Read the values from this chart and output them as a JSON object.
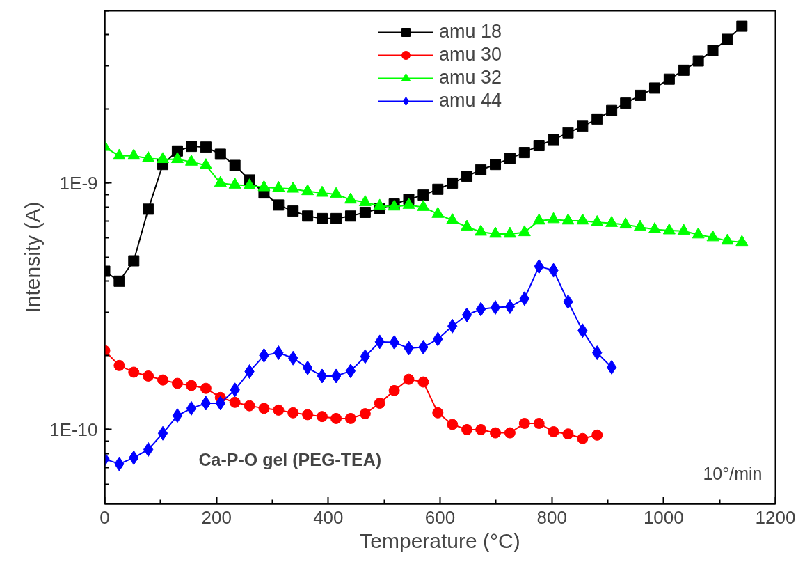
{
  "chart_data": {
    "type": "line",
    "xlabel": "Temperature (°C)",
    "ylabel": "Intensity (A)",
    "xlim": [
      0,
      1200
    ],
    "xticks": [
      0,
      200,
      400,
      600,
      800,
      1000,
      1200
    ],
    "ylim": [
      5e-11,
      5e-09
    ],
    "yticks": [
      {
        "value": 1e-10,
        "label": "1E-10"
      },
      {
        "value": 1e-09,
        "label": "1E-9"
      }
    ],
    "log": "y",
    "grid": false,
    "legend": "top",
    "line_style": "solid",
    "annotations": [
      "Ca-P-O gel (PEG-TEA)",
      "10°/min"
    ],
    "series": [
      {
        "name": "amu 18",
        "color": "#000000",
        "marker": "square",
        "x": [
          0,
          26,
          52,
          78,
          104,
          130,
          155,
          181,
          207,
          233,
          259,
          285,
          311,
          337,
          363,
          389,
          414,
          440,
          466,
          492,
          518,
          544,
          570,
          596,
          622,
          648,
          673,
          699,
          725,
          751,
          777,
          803,
          829,
          855,
          881,
          907,
          932,
          958,
          984,
          1010,
          1036,
          1062,
          1088,
          1114,
          1140
        ],
        "values": [
          4.39e-10,
          4e-10,
          4.84e-10,
          7.84e-10,
          1.19e-09,
          1.35e-09,
          1.41e-09,
          1.4e-09,
          1.31e-09,
          1.18e-09,
          1.03e-09,
          9.12e-10,
          8.15e-10,
          7.7e-10,
          7.35e-10,
          7.18e-10,
          7.18e-10,
          7.35e-10,
          7.61e-10,
          7.88e-10,
          8.22e-10,
          8.6e-10,
          8.94e-10,
          9.44e-10,
          1e-09,
          1.066e-09,
          1.133e-09,
          1.19e-09,
          1.26e-09,
          1.33e-09,
          1.42e-09,
          1.5e-09,
          1.6e-09,
          1.7e-09,
          1.82e-09,
          1.97e-09,
          2.11e-09,
          2.27e-09,
          2.43e-09,
          2.64e-09,
          2.87e-09,
          3.13e-09,
          3.45e-09,
          3.83e-09,
          4.33e-09
        ]
      },
      {
        "name": "amu 30",
        "color": "#ff0000",
        "marker": "circle",
        "x": [
          0,
          26,
          52,
          78,
          104,
          130,
          155,
          181,
          207,
          233,
          259,
          285,
          311,
          337,
          363,
          389,
          414,
          440,
          466,
          492,
          518,
          544,
          570,
          596,
          622,
          648,
          673,
          699,
          725,
          751,
          777,
          803,
          829,
          855,
          881
        ],
        "values": [
          2.09e-10,
          1.82e-10,
          1.71e-10,
          1.65e-10,
          1.59e-10,
          1.54e-10,
          1.51e-10,
          1.47e-10,
          1.35e-10,
          1.29e-10,
          1.25e-10,
          1.22e-10,
          1.2e-10,
          1.17e-10,
          1.15e-10,
          1.13e-10,
          1.11e-10,
          1.11e-10,
          1.16e-10,
          1.28e-10,
          1.44e-10,
          1.6e-10,
          1.56e-10,
          1.17e-10,
          1.05e-10,
          1e-10,
          1e-10,
          9.7e-11,
          9.7e-11,
          1.06e-10,
          1.06e-10,
          9.8e-11,
          9.6e-11,
          9.2e-11,
          9.5e-11
        ]
      },
      {
        "name": "amu 32",
        "color": "#00ff00",
        "marker": "triangle",
        "x": [
          0,
          26,
          52,
          78,
          104,
          130,
          155,
          181,
          207,
          233,
          259,
          285,
          311,
          337,
          363,
          389,
          414,
          440,
          466,
          492,
          518,
          544,
          570,
          596,
          622,
          648,
          673,
          699,
          725,
          751,
          777,
          803,
          829,
          855,
          881,
          907,
          932,
          958,
          984,
          1010,
          1036,
          1062,
          1088,
          1114,
          1140
        ],
        "values": [
          1.4e-09,
          1.29e-09,
          1.29e-09,
          1.26e-09,
          1.25e-09,
          1.25e-09,
          1.22e-09,
          1.18e-09,
          1e-09,
          9.84e-10,
          9.77e-10,
          9.61e-10,
          9.54e-10,
          9.48e-10,
          9.26e-10,
          9.12e-10,
          9.01e-10,
          8.56e-10,
          8.36e-10,
          8.08e-10,
          8.02e-10,
          8.15e-10,
          7.99e-10,
          7.49e-10,
          7.06e-10,
          6.64e-10,
          6.34e-10,
          6.22e-10,
          6.22e-10,
          6.31e-10,
          7.04e-10,
          7.13e-10,
          7.04e-10,
          7.04e-10,
          6.93e-10,
          6.88e-10,
          6.78e-10,
          6.64e-10,
          6.49e-10,
          6.42e-10,
          6.39e-10,
          6.18e-10,
          6.02e-10,
          5.83e-10,
          5.76e-10
        ]
      },
      {
        "name": "amu 44",
        "color": "#0000ff",
        "marker": "diamond",
        "x": [
          0,
          26,
          52,
          78,
          104,
          130,
          155,
          181,
          207,
          233,
          259,
          285,
          311,
          337,
          363,
          389,
          414,
          440,
          466,
          492,
          518,
          544,
          570,
          596,
          622,
          648,
          673,
          699,
          725,
          751,
          777,
          803,
          829,
          855,
          881,
          907
        ],
        "values": [
          7.6e-11,
          7.26e-11,
          7.69e-11,
          8.31e-11,
          9.66e-11,
          1.14e-10,
          1.22e-10,
          1.28e-10,
          1.28e-10,
          1.45e-10,
          1.72e-10,
          2e-10,
          2.05e-10,
          1.95e-10,
          1.78e-10,
          1.65e-10,
          1.65e-10,
          1.73e-10,
          1.98e-10,
          2.27e-10,
          2.26e-10,
          2.14e-10,
          2.16e-10,
          2.33e-10,
          2.63e-10,
          2.92e-10,
          3.08e-10,
          3.13e-10,
          3.15e-10,
          3.4e-10,
          4.59e-10,
          4.43e-10,
          3.3e-10,
          2.52e-10,
          2.05e-10,
          1.79e-10
        ]
      }
    ]
  }
}
